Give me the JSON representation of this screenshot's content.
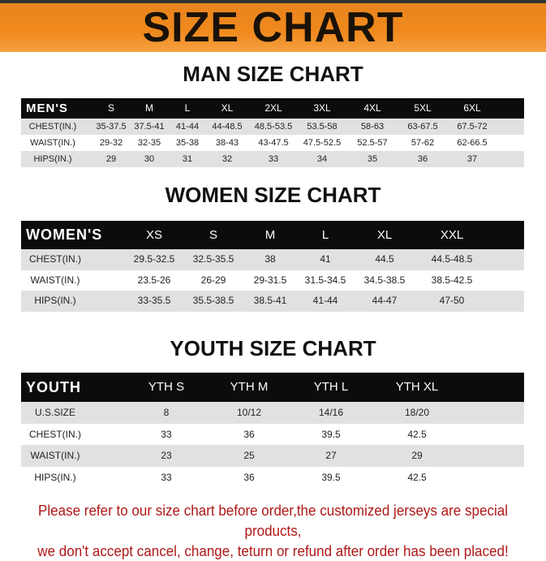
{
  "banner_title": "SIZE CHART",
  "notice": [
    "Please refer to our size chart before order,the customized jerseys are special products,",
    "we don't accept cancel, change, teturn or refund after order has been placed!"
  ],
  "tables": [
    {
      "title": "MAN SIZE CHART",
      "header": [
        "MEN'S",
        "S",
        "M",
        "L",
        "XL",
        "2XL",
        "3XL",
        "4XL",
        "5XL",
        "6XL"
      ],
      "rows": [
        [
          "CHEST(IN.)",
          "35-37.5",
          "37.5-41",
          "41-44",
          "44-48.5",
          "48.5-53.5",
          "53.5-58",
          "58-63",
          "63-67.5",
          "67.5-72"
        ],
        [
          "WAIST(IN.)",
          "29-32",
          "32-35",
          "35-38",
          "38-43",
          "43-47.5",
          "47.5-52.5",
          "52.5-57",
          "57-62",
          "62-66.5"
        ],
        [
          "HIPS(IN.)",
          "29",
          "30",
          "31",
          "32",
          "33",
          "34",
          "35",
          "36",
          "37"
        ]
      ]
    },
    {
      "title": "WOMEN SIZE CHART",
      "header": [
        "WOMEN'S",
        "XS",
        "S",
        "M",
        "L",
        "XL",
        "XXL"
      ],
      "rows": [
        [
          "CHEST(IN.)",
          "29.5-32.5",
          "32.5-35.5",
          "38",
          "41",
          "44.5",
          "44.5-48.5"
        ],
        [
          "WAIST(IN.)",
          "23.5-26",
          "26-29",
          "29-31.5",
          "31.5-34.5",
          "34.5-38.5",
          "38.5-42.5"
        ],
        [
          "HIPS(IN.)",
          "33-35.5",
          "35.5-38.5",
          "38.5-41",
          "41-44",
          "44-47",
          "47-50"
        ]
      ]
    },
    {
      "title": "YOUTH SIZE CHART",
      "header": [
        "YOUTH",
        "YTH S",
        "YTH M",
        "YTH L",
        "YTH XL"
      ],
      "rows": [
        [
          "U.S.SIZE",
          "8",
          "10/12",
          "14/16",
          "18/20"
        ],
        [
          "CHEST(IN.)",
          "33",
          "36",
          "39.5",
          "42.5"
        ],
        [
          "WAIST(IN.)",
          "23",
          "25",
          "27",
          "29"
        ],
        [
          "HIPS(IN.)",
          "33",
          "36",
          "39.5",
          "42.5"
        ]
      ]
    }
  ]
}
